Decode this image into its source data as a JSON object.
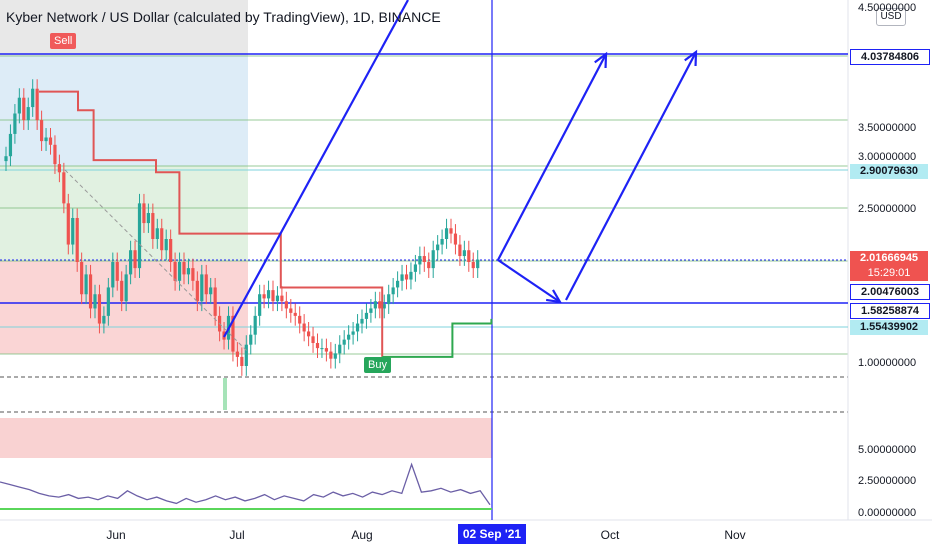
{
  "chart_data": {
    "type": "candlestick",
    "title": "Kyber Network / US Dollar (calculated by TradingView), 1D, BINANCE",
    "currency_button": "USD",
    "y_scale": "log",
    "y_ticks": [
      "4.50000000",
      "3.50000000",
      "3.00000000",
      "2.50000000",
      "1.00000000"
    ],
    "lower_y_ticks": [
      "5.00000000",
      "2.50000000",
      "0.00000000"
    ],
    "x_ticks": [
      "Jun",
      "Jul",
      "Aug",
      "Oct",
      "Nov"
    ],
    "cursor_date": "02 Sep '21",
    "price_labels": [
      {
        "text": "4.03784806",
        "value": 4.03784806,
        "style": "blue-outline"
      },
      {
        "text": "2.90079630",
        "value": 2.9007963,
        "style": "teal"
      },
      {
        "text": "2.01666945",
        "value": 2.01666945,
        "style": "red"
      },
      {
        "text": "15:29:01",
        "style": "red-countdown"
      },
      {
        "text": "2.00476003",
        "value": 2.00476003,
        "style": "blue-outline"
      },
      {
        "text": "1.58258874",
        "value": 1.58258874,
        "style": "blue-outline"
      },
      {
        "text": "1.55439902",
        "value": 1.55439902,
        "style": "teal"
      }
    ],
    "signals": [
      {
        "text": "Sell",
        "color": "#f05a5a"
      },
      {
        "text": "Buy",
        "color": "#26a65b"
      }
    ],
    "colors": {
      "up": "#26a69a",
      "down": "#ef5350",
      "drawing": "#1e22f5",
      "stop_down": "#e05555",
      "stop_up": "#2ea84f"
    },
    "close_series": [
      3.1,
      3.4,
      3.7,
      3.95,
      3.6,
      3.8,
      4.1,
      3.6,
      3.3,
      3.35,
      3.25,
      3.0,
      2.9,
      2.55,
      2.15,
      2.4,
      2.0,
      1.75,
      1.9,
      1.65,
      1.75,
      1.55,
      1.6,
      1.8,
      2.0,
      1.85,
      1.7,
      1.9,
      2.1,
      1.95,
      2.55,
      2.35,
      2.45,
      2.2,
      2.3,
      2.1,
      2.2,
      2.0,
      1.85,
      2.0,
      1.9,
      1.95,
      1.85,
      1.7,
      1.9,
      1.75,
      1.8,
      1.6,
      1.5,
      1.45,
      1.6,
      1.38,
      1.35,
      1.3,
      1.42,
      1.48,
      1.6,
      1.75,
      1.72,
      1.78,
      1.7,
      1.74,
      1.7,
      1.65,
      1.62,
      1.6,
      1.55,
      1.5,
      1.47,
      1.43,
      1.4,
      1.4,
      1.38,
      1.34,
      1.37,
      1.42,
      1.45,
      1.48,
      1.5,
      1.55,
      1.58,
      1.62,
      1.65,
      1.7,
      1.65,
      1.68,
      1.75,
      1.8,
      1.85,
      1.9,
      1.86,
      1.92,
      1.98,
      2.05,
      2.0,
      1.95,
      2.1,
      2.15,
      2.2,
      2.3,
      2.25,
      2.15,
      2.05,
      2.1,
      2.0,
      1.95,
      2.02
    ],
    "stop_line": [
      [
        0.05,
        4.05
      ],
      [
        0.1,
        3.75
      ],
      [
        0.12,
        3.05
      ],
      [
        0.2,
        2.9
      ],
      [
        0.23,
        2.25
      ],
      [
        0.3,
        2.25
      ],
      [
        0.36,
        1.8
      ],
      [
        0.46,
        1.8
      ],
      [
        0.49,
        1.35
      ],
      [
        0.52,
        1.35
      ],
      [
        0.58,
        1.55
      ],
      [
        0.63,
        1.58
      ]
    ],
    "oscillator": [
      2.3,
      2.1,
      1.9,
      1.7,
      1.4,
      1.2,
      1.1,
      1.3,
      1.0,
      1.1,
      0.9,
      1.2,
      1.0,
      1.6,
      1.2,
      0.9,
      1.1,
      0.8,
      0.6,
      1.0,
      0.7,
      0.9,
      1.2,
      0.9,
      1.1,
      0.8,
      1.0,
      1.3,
      0.9,
      1.2,
      1.0,
      0.8,
      1.3,
      1.1,
      1.5,
      1.2,
      1.4,
      1.1,
      1.5,
      1.3,
      1.6,
      1.4,
      3.7,
      1.5,
      1.6,
      1.8,
      1.5,
      1.7,
      1.4,
      1.6,
      0.5
    ]
  }
}
